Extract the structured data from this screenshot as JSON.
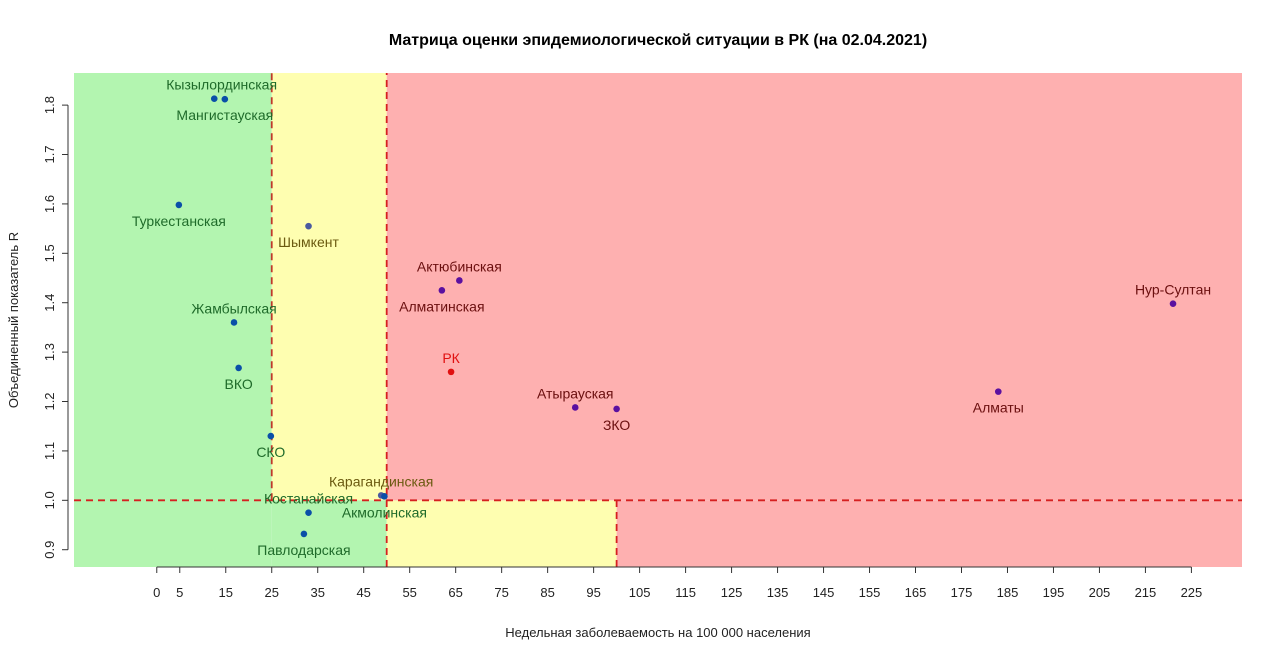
{
  "chart_data": {
    "type": "scatter",
    "title": "Матрица оценки эпидемиологической ситуации в РК (на 02.04.2021)",
    "xlabel": "Недельная заболеваемость на 100 000 населения",
    "ylabel": "Объединенный показатель R",
    "xlim": [
      -18,
      236
    ],
    "ylim": [
      0.865,
      1.865
    ],
    "x_ticks": [
      0,
      5,
      15,
      25,
      35,
      45,
      55,
      65,
      75,
      85,
      95,
      105,
      115,
      125,
      135,
      145,
      155,
      165,
      175,
      185,
      195,
      205,
      215,
      225
    ],
    "y_ticks": [
      0.9,
      1.0,
      1.1,
      1.2,
      1.3,
      1.4,
      1.5,
      1.6,
      1.7,
      1.8
    ],
    "y_tick_labels": [
      "0.9",
      "1.0",
      "1.1",
      "1.2",
      "1.3",
      "1.4",
      "1.5",
      "1.6",
      "1.7",
      "1.8"
    ],
    "grid": false,
    "zones": [
      {
        "x0": -18,
        "x1": 25,
        "y0": 0.865,
        "y1": 1.865,
        "color": "#b3f5b0"
      },
      {
        "x0": 25,
        "x1": 50,
        "y0": 1.0,
        "y1": 1.865,
        "color": "#fefeb0"
      },
      {
        "x0": 25,
        "x1": 50,
        "y0": 0.865,
        "y1": 1.0,
        "color": "#b3f5b0"
      },
      {
        "x0": 50,
        "x1": 100,
        "y0": 0.865,
        "y1": 1.0,
        "color": "#fefeb0"
      },
      {
        "x0": 50,
        "x1": 236,
        "y0": 1.0,
        "y1": 1.865,
        "color": "#feb0b0"
      },
      {
        "x0": 100,
        "x1": 236,
        "y0": 0.865,
        "y1": 1.0,
        "color": "#feb0b0"
      }
    ],
    "reference_lines": [
      {
        "orient": "v",
        "x": 25,
        "y0": 1.0,
        "y1": 1.865,
        "color": "#c0392b"
      },
      {
        "orient": "v",
        "x": 50,
        "y0": 0.865,
        "y1": 1.865,
        "color": "#d62020"
      },
      {
        "orient": "v",
        "x": 100,
        "y0": 0.865,
        "y1": 1.0,
        "color": "#d62020"
      },
      {
        "orient": "h",
        "y": 1.0,
        "x0": -18,
        "x1": 236,
        "color": "#d62020"
      }
    ],
    "points": [
      {
        "name": "Кызылординская",
        "x": 12.5,
        "y": 1.813,
        "point_color": "#0a4fa8",
        "label_color": "#1f6b2a",
        "label_pos": "above-right"
      },
      {
        "name": "Мангистауская",
        "x": 14.8,
        "y": 1.812,
        "point_color": "#0a4fa8",
        "label_color": "#1f6b2a",
        "label_pos": "below"
      },
      {
        "name": "Туркестанская",
        "x": 4.8,
        "y": 1.598,
        "point_color": "#0a4fa8",
        "label_color": "#1f6b2a",
        "label_pos": "below"
      },
      {
        "name": "Шымкент",
        "x": 33,
        "y": 1.555,
        "point_color": "#4a5aa0",
        "label_color": "#6b5a10",
        "label_pos": "below"
      },
      {
        "name": "Жамбылская",
        "x": 16.8,
        "y": 1.36,
        "point_color": "#0a4fa8",
        "label_color": "#1f6b2a",
        "label_pos": "above"
      },
      {
        "name": "ВКО",
        "x": 17.8,
        "y": 1.268,
        "point_color": "#0a4fa8",
        "label_color": "#1f6b2a",
        "label_pos": "below"
      },
      {
        "name": "СКО",
        "x": 24.8,
        "y": 1.13,
        "point_color": "#0a4fa8",
        "label_color": "#1f6b2a",
        "label_pos": "below"
      },
      {
        "name": "Карагандинская",
        "x": 48.8,
        "y": 1.01,
        "point_color": "#4a5aa0",
        "label_color": "#6b5a10",
        "label_pos": "above"
      },
      {
        "name": "Костанайская",
        "x": 33,
        "y": 0.975,
        "point_color": "#0a4fa8",
        "label_color": "#1f6b2a",
        "label_pos": "above"
      },
      {
        "name": "Акмолинская",
        "x": 49.5,
        "y": 1.008,
        "point_color": "#0a4fa8",
        "label_color": "#1f6b2a",
        "label_pos": "below"
      },
      {
        "name": "Павлодарская",
        "x": 32,
        "y": 0.932,
        "point_color": "#0a4fa8",
        "label_color": "#1f6b2a",
        "label_pos": "below"
      },
      {
        "name": "Актюбинская",
        "x": 65.8,
        "y": 1.445,
        "point_color": "#5a10a0",
        "label_color": "#6b0f0f",
        "label_pos": "above"
      },
      {
        "name": "Алматинская",
        "x": 62,
        "y": 1.425,
        "point_color": "#5a10a0",
        "label_color": "#6b0f0f",
        "label_pos": "below"
      },
      {
        "name": "РК",
        "x": 64,
        "y": 1.26,
        "point_color": "#e01010",
        "label_color": "#e01010",
        "label_pos": "above"
      },
      {
        "name": "Атырауская",
        "x": 91,
        "y": 1.188,
        "point_color": "#5a10a0",
        "label_color": "#6b0f0f",
        "label_pos": "above"
      },
      {
        "name": "ЗКО",
        "x": 100,
        "y": 1.185,
        "point_color": "#5a10a0",
        "label_color": "#6b0f0f",
        "label_pos": "below"
      },
      {
        "name": "Алматы",
        "x": 183,
        "y": 1.22,
        "point_color": "#5a10a0",
        "label_color": "#6b0f0f",
        "label_pos": "below"
      },
      {
        "name": "Нур-Султан",
        "x": 221,
        "y": 1.398,
        "point_color": "#5a10a0",
        "label_color": "#6b0f0f",
        "label_pos": "above"
      }
    ]
  }
}
